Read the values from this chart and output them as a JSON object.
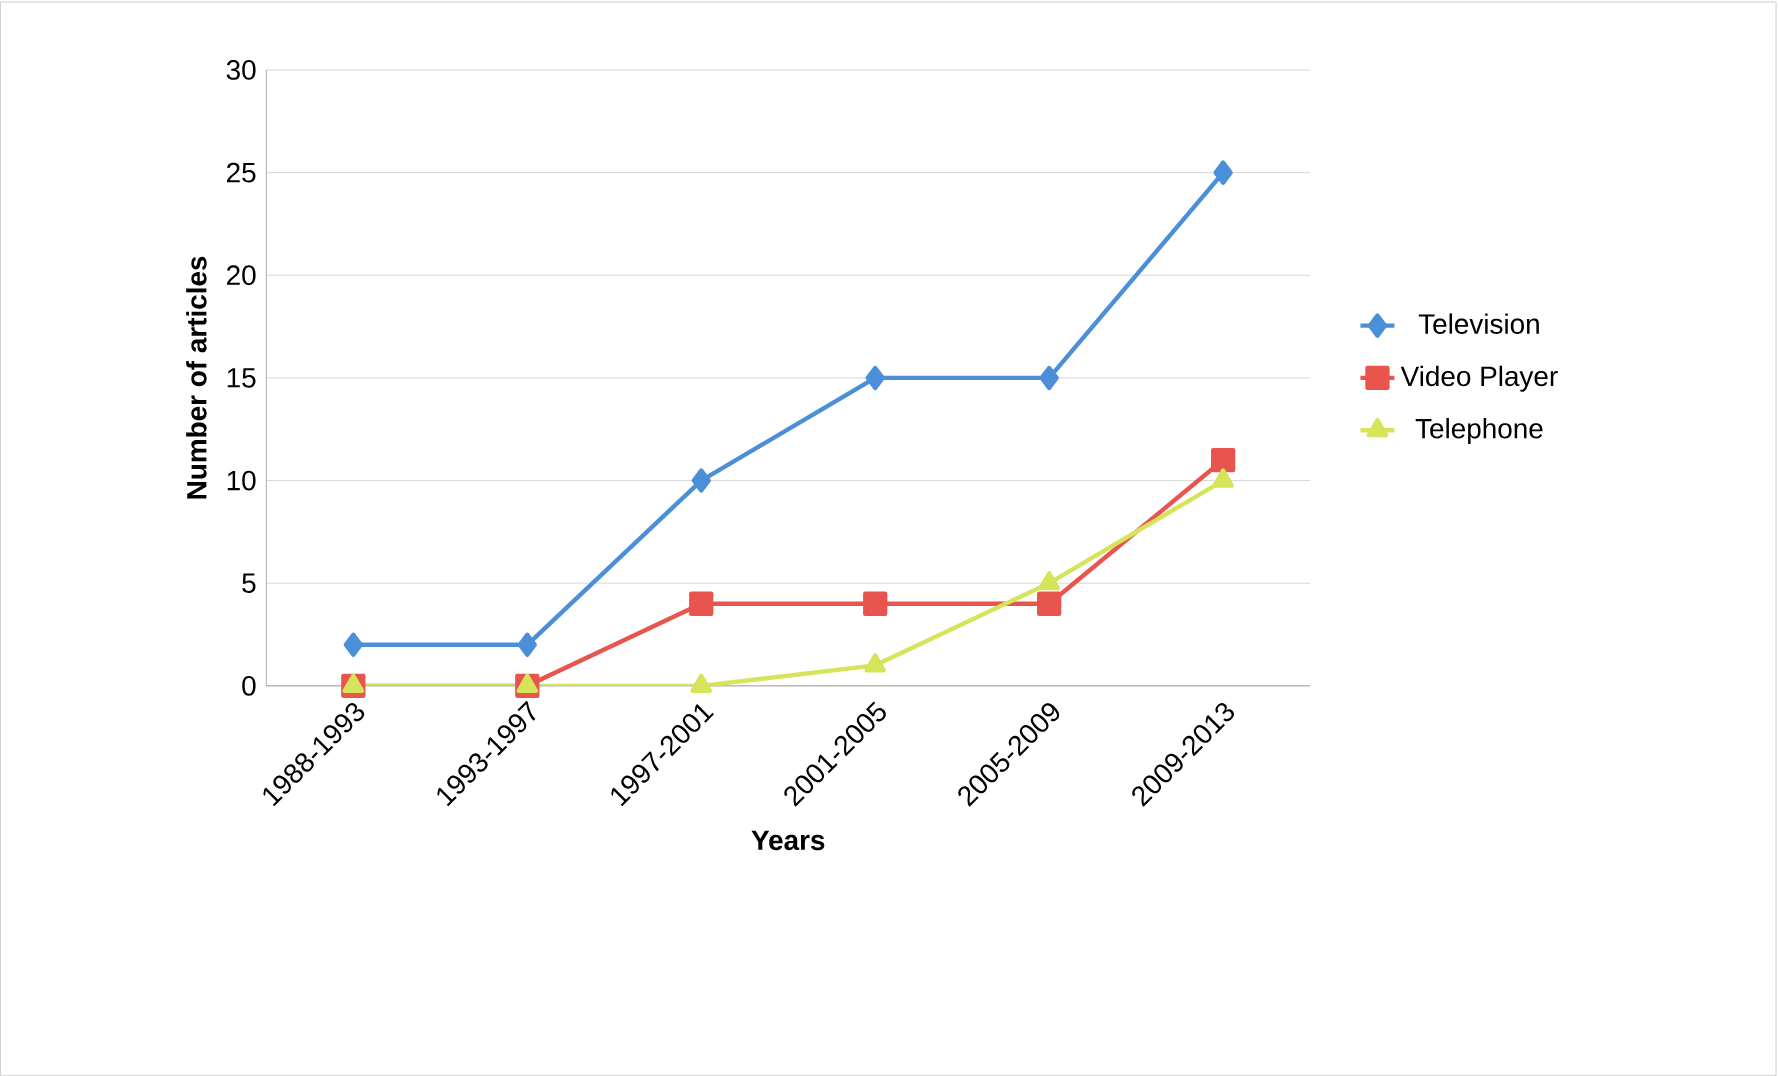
{
  "chart_data": {
    "type": "line",
    "xlabel": "Years",
    "ylabel": "Number of articles",
    "categories": [
      "1988-1993",
      "1993-1997",
      "1997-2001",
      "2001-2005",
      "2005-2009",
      "2009-2013"
    ],
    "series": [
      {
        "name": "Television",
        "color": "#4a8fd8",
        "marker": "diamond",
        "values": [
          2,
          2,
          10,
          15,
          15,
          25
        ]
      },
      {
        "name": "Video Player",
        "color": "#e8554e",
        "marker": "square",
        "values": [
          0,
          0,
          4,
          4,
          4,
          11
        ]
      },
      {
        "name": "Telephone",
        "color": "#d6e45a",
        "marker": "triangle",
        "values": [
          0,
          0,
          0,
          1,
          5,
          10
        ]
      }
    ],
    "ylim": [
      0,
      30
    ],
    "yticks": [
      0,
      5,
      10,
      15,
      20,
      25,
      30
    ],
    "grid": "y",
    "legend": "right"
  }
}
